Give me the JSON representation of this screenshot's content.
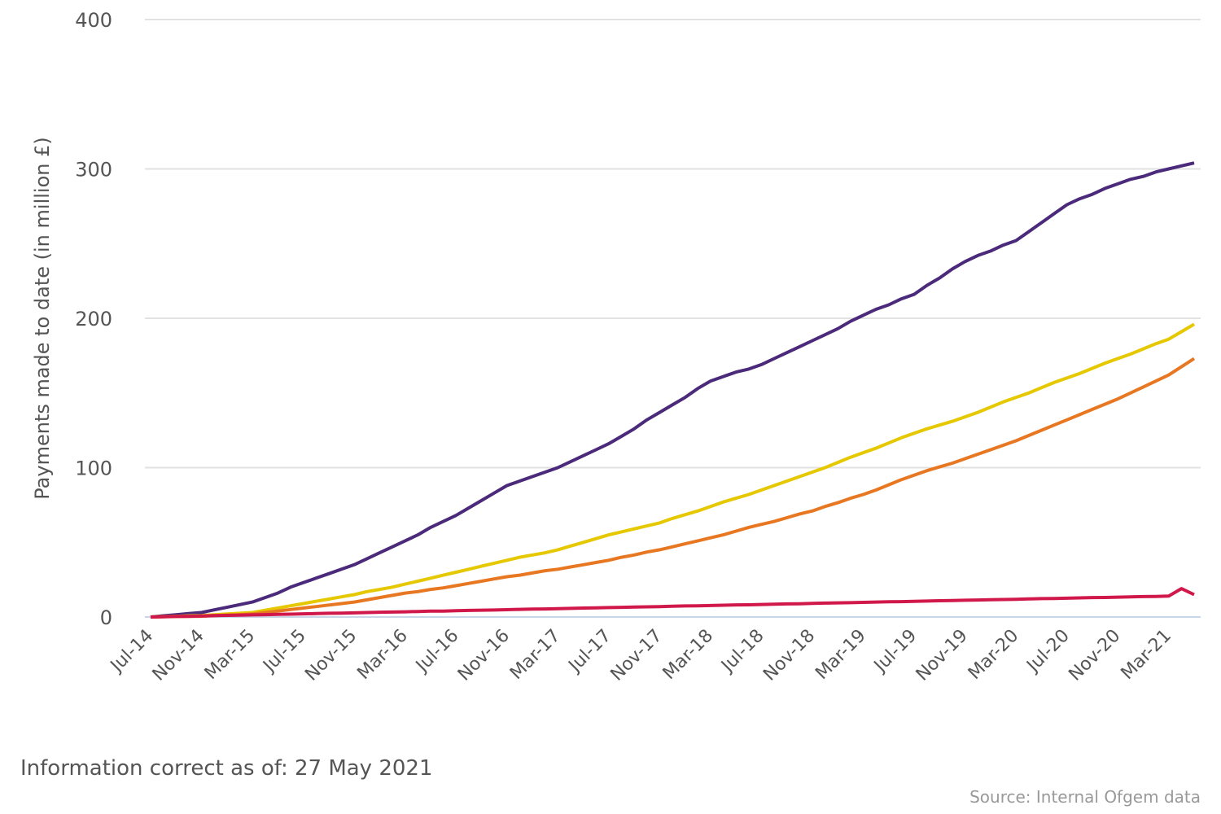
{
  "chart_data": {
    "type": "line",
    "y_label": "Payments made to date (in million £)",
    "note": "Information correct as of: 27 May 2021",
    "source": "Source: Internal Ofgem data",
    "grid": true,
    "ylim": [
      0,
      400
    ],
    "yticks": [
      0,
      100,
      200,
      300,
      400
    ],
    "categories": [
      "Jul-14",
      null,
      null,
      null,
      "Nov-14",
      null,
      null,
      null,
      "Mar-15",
      null,
      null,
      null,
      "Jul-15",
      null,
      null,
      null,
      "Nov-15",
      null,
      null,
      null,
      "Mar-16",
      null,
      null,
      null,
      "Jul-16",
      null,
      null,
      null,
      "Nov-16",
      null,
      null,
      null,
      "Mar-17",
      null,
      null,
      null,
      "Jul-17",
      null,
      null,
      null,
      "Nov-17",
      null,
      null,
      null,
      "Mar-18",
      null,
      null,
      null,
      "Jul-18",
      null,
      null,
      null,
      "Nov-18",
      null,
      null,
      null,
      "Mar-19",
      null,
      null,
      null,
      "Jul-19",
      null,
      null,
      null,
      "Nov-19",
      null,
      null,
      null,
      "Mar-20",
      null,
      null,
      null,
      "Jul-20",
      null,
      null,
      null,
      "Nov-20",
      null,
      null,
      null,
      "Mar-21",
      null,
      null
    ],
    "series": [
      {
        "color": "#4b2a7b",
        "values": [
          0,
          0.8,
          1.5,
          2.3,
          3,
          4.8,
          6.5,
          8.3,
          10,
          13,
          16,
          20,
          23,
          26,
          29,
          32,
          35,
          39,
          43,
          47,
          51,
          55,
          60,
          64,
          68,
          73,
          78,
          83,
          88,
          91,
          94,
          97,
          100,
          104,
          108,
          112,
          116,
          121,
          126,
          132,
          137,
          142,
          147,
          153,
          158,
          161,
          164,
          166,
          169,
          173,
          177,
          181,
          185,
          189,
          193,
          198,
          202,
          206,
          209,
          213,
          216,
          222,
          227,
          233,
          238,
          242,
          245,
          249,
          252,
          258,
          264,
          270,
          276,
          280,
          283,
          287,
          290,
          293,
          295,
          298,
          300,
          302,
          304
        ]
      },
      {
        "color": "#e6c800",
        "values": [
          0,
          0.3,
          0.5,
          0.8,
          1,
          1.5,
          2,
          2.5,
          3,
          4.5,
          6,
          7.5,
          9,
          10.5,
          12,
          13.5,
          15,
          17,
          18.5,
          20,
          22,
          24,
          26,
          28,
          30,
          32,
          34,
          36,
          38,
          40,
          41.5,
          43,
          45,
          47.5,
          50,
          52.5,
          55,
          57,
          59,
          61,
          63,
          66,
          68.5,
          71,
          74,
          77,
          79.5,
          82,
          85,
          88,
          91,
          94,
          97,
          100,
          103.5,
          107,
          110,
          113,
          116.5,
          120,
          123,
          126,
          128.5,
          131,
          134,
          137,
          140.5,
          144,
          147,
          150,
          153.5,
          157,
          160,
          163,
          166.5,
          170,
          173,
          176,
          179.5,
          183,
          186,
          191,
          196
        ]
      },
      {
        "color": "#e87722",
        "values": [
          0,
          0.1,
          0.3,
          0.4,
          0.5,
          0.9,
          1.3,
          1.6,
          2,
          3,
          4,
          5,
          6,
          7,
          8,
          9,
          10,
          11.5,
          13,
          14.5,
          16,
          17,
          18.5,
          19.5,
          21,
          22.5,
          24,
          25.5,
          27,
          28,
          29.5,
          31,
          32,
          33.5,
          35,
          36.5,
          38,
          40,
          41.5,
          43.5,
          45,
          47,
          49,
          51,
          53,
          55,
          57.5,
          60,
          62,
          64,
          66.5,
          69,
          71,
          74,
          76.5,
          79.5,
          82,
          85,
          88.5,
          92,
          95,
          98,
          100.5,
          103,
          106,
          109,
          112,
          115,
          118,
          121.5,
          125,
          128.5,
          132,
          135.5,
          139,
          142.5,
          146,
          150,
          154,
          158,
          162,
          167.5,
          173
        ]
      },
      {
        "color": "#d0184a",
        "values": [
          0,
          0.2,
          0.4,
          0.5,
          0.7,
          0.9,
          1.1,
          1.2,
          1.4,
          1.6,
          1.8,
          1.9,
          2.1,
          2.3,
          2.5,
          2.6,
          2.8,
          3,
          3.2,
          3.3,
          3.5,
          3.7,
          3.9,
          4,
          4.2,
          4.4,
          4.6,
          4.7,
          4.9,
          5.1,
          5.3,
          5.4,
          5.6,
          5.8,
          6,
          6.1,
          6.3,
          6.5,
          6.7,
          6.8,
          7,
          7.2,
          7.4,
          7.5,
          7.7,
          7.9,
          8.1,
          8.2,
          8.4,
          8.6,
          8.8,
          8.9,
          9.1,
          9.3,
          9.5,
          9.6,
          9.8,
          10,
          10.2,
          10.3,
          10.5,
          10.7,
          10.9,
          11,
          11.2,
          11.4,
          11.6,
          11.7,
          11.9,
          12.1,
          12.3,
          12.4,
          12.6,
          12.8,
          13,
          13.1,
          13.3,
          13.5,
          13.7,
          13.8,
          14,
          19,
          15
        ]
      }
    ]
  }
}
